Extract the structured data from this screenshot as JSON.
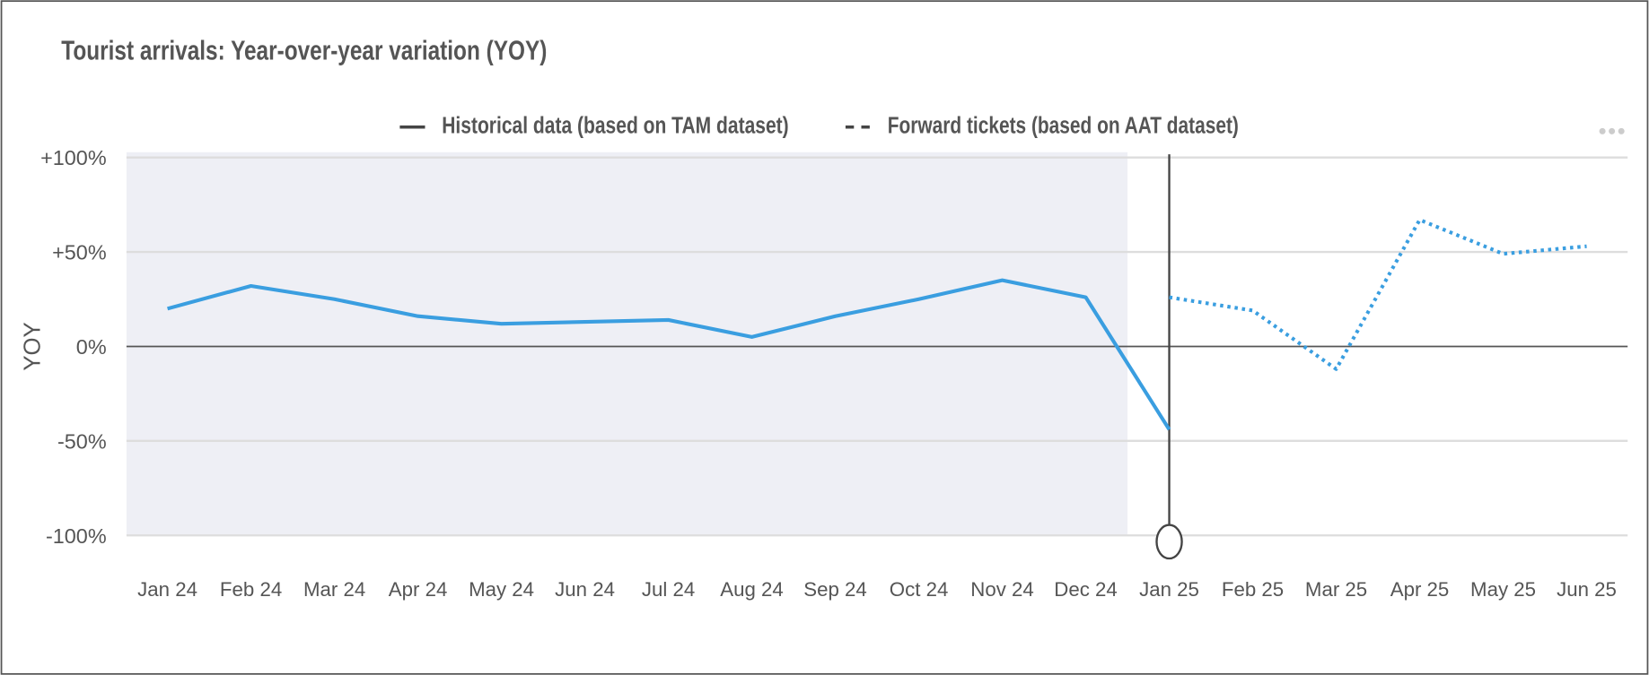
{
  "chart_data": {
    "type": "line",
    "title": "Tourist arrivals: Year-over-year variation (YOY)",
    "y_label": "YOY",
    "categories": [
      "Jan 24",
      "Feb 24",
      "Mar 24",
      "Apr 24",
      "May 24",
      "Jun 24",
      "Jul 24",
      "Aug 24",
      "Sep 24",
      "Oct 24",
      "Nov 24",
      "Dec 24",
      "Jan 25",
      "Feb 25",
      "Mar 25",
      "Apr 25",
      "May 25",
      "Jun 25"
    ],
    "series": [
      {
        "name": "Historical data (based on TAM dataset)",
        "color": "#3a9ee0",
        "dash": "solid",
        "values": [
          20,
          32,
          25,
          16,
          12,
          13,
          14,
          5,
          16,
          25,
          35,
          26,
          -44,
          null,
          null,
          null,
          null,
          null
        ]
      },
      {
        "name": "Forward tickets (based on AAT dataset)",
        "color": "#3a9ee0",
        "dash": "dotted",
        "values": [
          null,
          null,
          null,
          null,
          null,
          null,
          null,
          null,
          null,
          null,
          null,
          null,
          26,
          19,
          -12,
          67,
          49,
          53
        ]
      }
    ],
    "ylim": [
      -100,
      100
    ],
    "yticks": [
      {
        "value": 100,
        "label": "+100%"
      },
      {
        "value": 50,
        "label": "+50%"
      },
      {
        "value": 0,
        "label": "0%"
      },
      {
        "value": -50,
        "label": "-50%"
      },
      {
        "value": -100,
        "label": "-100%"
      }
    ],
    "grid": true
  }
}
